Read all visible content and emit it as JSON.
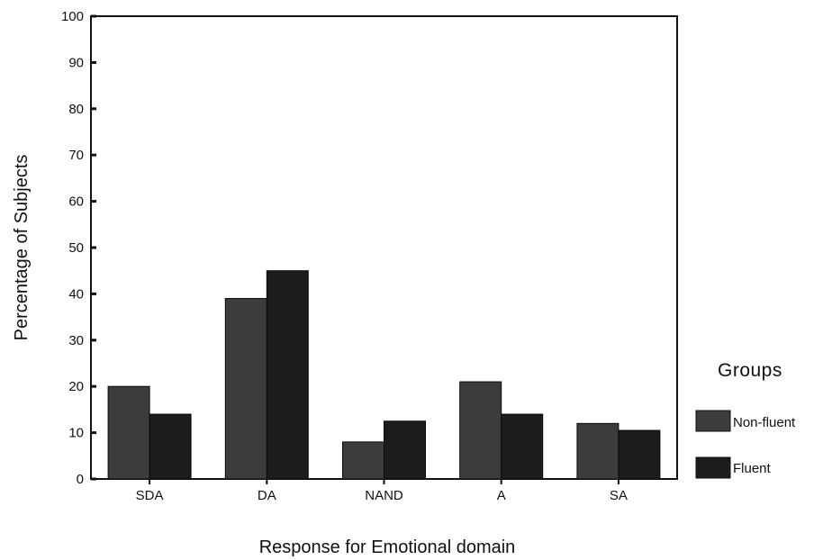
{
  "chart_data": {
    "type": "bar",
    "categories": [
      "SDA",
      "DA",
      "NAND",
      "A",
      "SA"
    ],
    "series": [
      {
        "name": "Non-fluent",
        "values": [
          20,
          39,
          8,
          21,
          12
        ]
      },
      {
        "name": "Fluent",
        "values": [
          14,
          45,
          12.5,
          14,
          10.5
        ]
      }
    ],
    "xlabel": "Response for Emotional domain",
    "ylabel": "Percentage of Subjects",
    "ylim": [
      0,
      100
    ],
    "yticks": [
      0,
      10,
      20,
      30,
      40,
      50,
      60,
      70,
      80,
      90,
      100
    ],
    "grid": false,
    "legend": {
      "title": "Groups",
      "position": "right"
    },
    "colors": {
      "Non-fluent": "#3c3c3c",
      "Fluent": "#1c1c1c"
    }
  }
}
